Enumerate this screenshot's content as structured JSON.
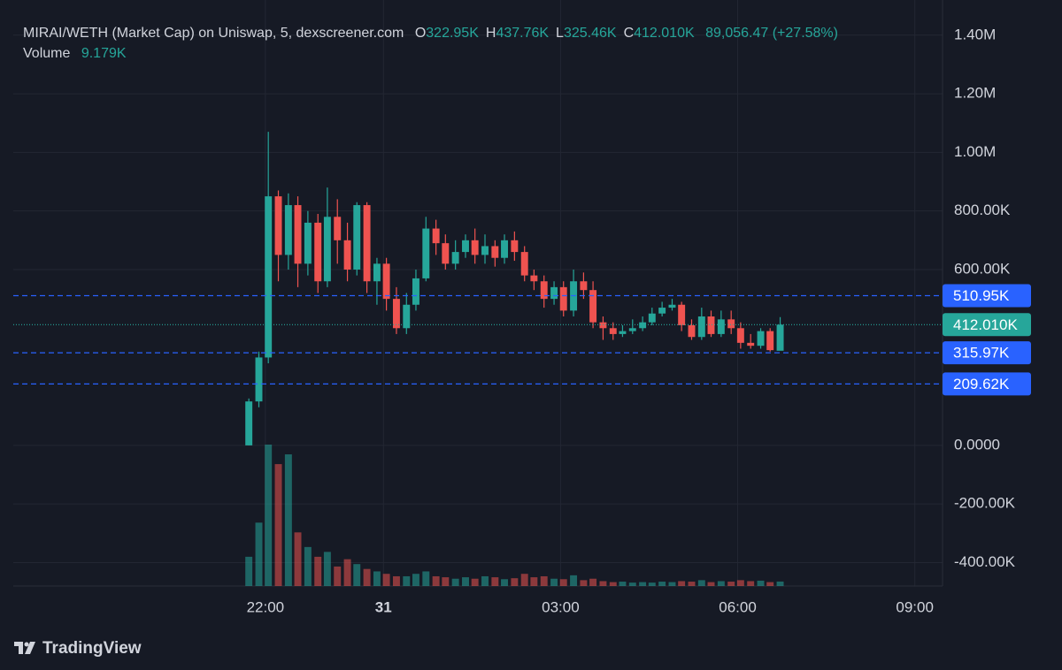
{
  "chart_data": {
    "type": "candlestick",
    "header": {
      "title": "MIRAI/WETH (Market Cap) on Uniswap, 5, dexscreener.com",
      "ohlc": [
        {
          "label": "O",
          "value": "322.95K"
        },
        {
          "label": "H",
          "value": "437.76K"
        },
        {
          "label": "L",
          "value": "325.46K"
        },
        {
          "label": "C",
          "value": "412.010K"
        }
      ],
      "change": "89,056.47 (+27.58%)",
      "volume_label": "Volume",
      "volume_value": "9.179K"
    },
    "x": [
      21.72,
      21.89,
      22.05,
      22.22,
      22.39,
      22.55,
      22.72,
      22.89,
      23.05,
      23.22,
      23.39,
      23.55,
      23.72,
      23.89,
      24.05,
      24.22,
      24.39,
      24.55,
      24.72,
      24.89,
      25.05,
      25.22,
      25.39,
      25.55,
      25.72,
      25.89,
      26.05,
      26.22,
      26.39,
      26.55,
      26.72,
      26.89,
      27.05,
      27.22,
      27.39,
      27.55,
      27.72,
      27.89,
      28.05,
      28.22,
      28.39,
      28.55,
      28.72,
      28.89,
      29.05,
      29.22,
      29.39,
      29.55,
      29.72,
      29.89,
      30.05,
      30.22,
      30.39,
      30.55,
      30.72
    ],
    "open": [
      0,
      150000,
      300000,
      850000,
      650000,
      820000,
      620000,
      760000,
      560000,
      780000,
      700000,
      600000,
      820000,
      560000,
      620000,
      500000,
      400000,
      480000,
      570000,
      740000,
      690000,
      620000,
      660000,
      700000,
      650000,
      680000,
      640000,
      700000,
      660000,
      580000,
      560000,
      500000,
      540000,
      460000,
      560000,
      530000,
      420000,
      400000,
      380000,
      390000,
      400000,
      420000,
      450000,
      470000,
      480000,
      410000,
      370000,
      440000,
      380000,
      430000,
      400000,
      350000,
      340000,
      390000,
      322950
    ],
    "high": [
      160000,
      320000,
      1070000,
      870000,
      860000,
      850000,
      800000,
      790000,
      880000,
      840000,
      760000,
      830000,
      830000,
      640000,
      640000,
      540000,
      520000,
      600000,
      780000,
      770000,
      720000,
      700000,
      720000,
      740000,
      720000,
      700000,
      720000,
      730000,
      680000,
      600000,
      580000,
      560000,
      560000,
      600000,
      590000,
      560000,
      440000,
      420000,
      410000,
      430000,
      440000,
      470000,
      490000,
      500000,
      490000,
      430000,
      470000,
      460000,
      460000,
      460000,
      420000,
      380000,
      400000,
      400000,
      437760
    ],
    "low": [
      0,
      130000,
      280000,
      560000,
      600000,
      540000,
      580000,
      520000,
      540000,
      620000,
      560000,
      580000,
      520000,
      480000,
      460000,
      380000,
      380000,
      460000,
      560000,
      650000,
      600000,
      600000,
      640000,
      620000,
      620000,
      610000,
      620000,
      630000,
      560000,
      530000,
      470000,
      480000,
      440000,
      440000,
      500000,
      400000,
      360000,
      360000,
      370000,
      380000,
      390000,
      410000,
      440000,
      460000,
      390000,
      360000,
      360000,
      370000,
      370000,
      380000,
      330000,
      330000,
      330000,
      320000,
      325460
    ],
    "close": [
      150000,
      300000,
      850000,
      650000,
      820000,
      620000,
      760000,
      560000,
      780000,
      700000,
      600000,
      820000,
      560000,
      620000,
      500000,
      400000,
      480000,
      570000,
      740000,
      690000,
      620000,
      660000,
      700000,
      650000,
      680000,
      640000,
      700000,
      660000,
      580000,
      560000,
      500000,
      540000,
      460000,
      560000,
      530000,
      420000,
      400000,
      380000,
      390000,
      400000,
      420000,
      450000,
      470000,
      480000,
      410000,
      370000,
      440000,
      380000,
      430000,
      400000,
      350000,
      340000,
      390000,
      325000,
      412010
    ],
    "volume": [
      60000,
      130000,
      290000,
      250000,
      270000,
      110000,
      80000,
      60000,
      70000,
      40000,
      55000,
      45000,
      35000,
      30000,
      25000,
      20000,
      20000,
      25000,
      30000,
      20000,
      18000,
      15000,
      18000,
      15000,
      20000,
      18000,
      14000,
      16000,
      25000,
      18000,
      20000,
      15000,
      14000,
      22000,
      12000,
      15000,
      10000,
      8000,
      9000,
      7000,
      8000,
      7000,
      9000,
      8000,
      10000,
      9000,
      12000,
      8000,
      10000,
      9000,
      12000,
      10000,
      11000,
      8000,
      9179
    ],
    "up_color": "#26a69a",
    "down_color": "#ef5350",
    "xlim": [
      17.73,
      33.47
    ],
    "xticks": [
      {
        "value": 22,
        "label": "22:00"
      },
      {
        "value": 24,
        "label": "31"
      },
      {
        "value": 27,
        "label": "03:00"
      },
      {
        "value": 30,
        "label": "06:00"
      },
      {
        "value": 33,
        "label": "09:00"
      }
    ],
    "ylim": [
      -480000,
      1520000
    ],
    "yticks": [
      {
        "value": -400000,
        "label": "-400.00K"
      },
      {
        "value": -200000,
        "label": "-200.00K"
      },
      {
        "value": 0,
        "label": "0.0000"
      },
      {
        "value": 600000,
        "label": "600.00K"
      },
      {
        "value": 800000,
        "label": "800.00K"
      },
      {
        "value": 1000000,
        "label": "1.00M"
      },
      {
        "value": 1200000,
        "label": "1.20M"
      },
      {
        "value": 1400000,
        "label": "1.40M"
      }
    ],
    "grid": true,
    "price_lines": [
      {
        "value": 510950,
        "label": "510.95K",
        "color": "#2962ff"
      },
      {
        "value": 412010,
        "label": "412.010K",
        "color": "#26a69a"
      },
      {
        "value": 315970,
        "label": "315.97K",
        "color": "#2962ff"
      },
      {
        "value": 209620,
        "label": "209.62K",
        "color": "#2962ff"
      }
    ],
    "brand": "TradingView"
  }
}
